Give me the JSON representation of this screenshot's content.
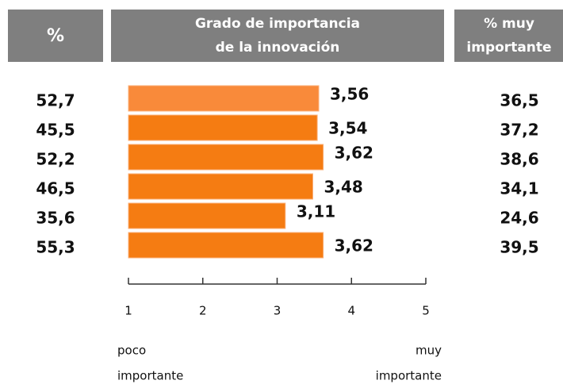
{
  "chart_data": {
    "type": "bar",
    "orientation": "horizontal",
    "header_left": "%",
    "header_center": [
      "Grado de importancia",
      "de la innovación"
    ],
    "header_right": [
      "% muy",
      "importante"
    ],
    "values": [
      3.56,
      3.54,
      3.62,
      3.48,
      3.11,
      3.62
    ],
    "value_labels": [
      "3,56",
      "3,54",
      "3,62",
      "3,48",
      "3,11",
      "3,62"
    ],
    "colors": [
      "#f98a3a",
      "#f57c12",
      "#f57c12",
      "#f57c12",
      "#f57c12",
      "#f57c12"
    ],
    "left_column": [
      "52,7",
      "45,5",
      "52,2",
      "46,5",
      "35,6",
      "55,3"
    ],
    "right_column": [
      "36,5",
      "37,2",
      "38,6",
      "34,1",
      "24,6",
      "39,5"
    ],
    "xlim": [
      1,
      5
    ],
    "xticks": [
      1,
      2,
      3,
      4,
      5
    ],
    "xlabel_left": [
      "poco",
      "importante"
    ],
    "xlabel_right": [
      "muy",
      "importante"
    ]
  }
}
